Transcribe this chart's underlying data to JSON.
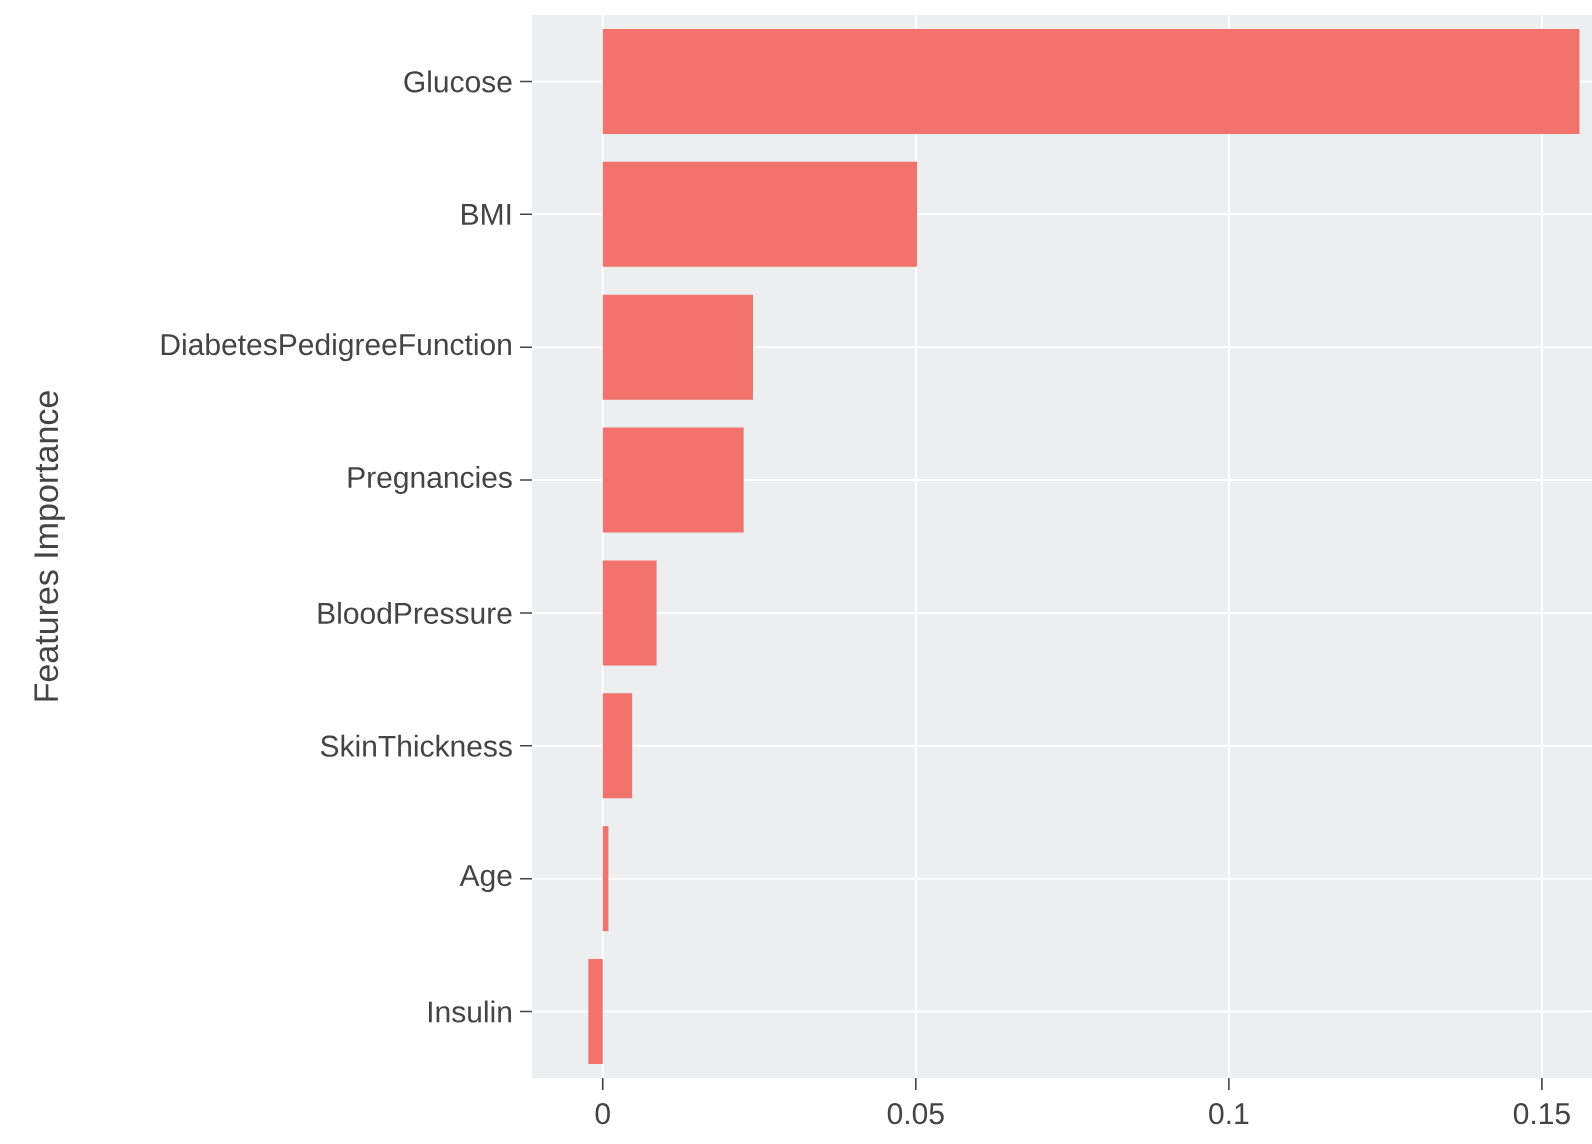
{
  "chart_data": {
    "type": "bar",
    "orientation": "horizontal",
    "ylabel": "Features Importance",
    "categories": [
      "Glucose",
      "BMI",
      "DiabetesPedigreeFunction",
      "Pregnancies",
      "BloodPressure",
      "SkinThickness",
      "Age",
      "Insulin"
    ],
    "values": [
      0.156,
      0.0502,
      0.024,
      0.0225,
      0.0086,
      0.0047,
      0.0009,
      -0.0023
    ],
    "color": "#f2726c",
    "xlim": [
      -0.0113,
      0.158
    ],
    "xticks": [
      0,
      0.05,
      0.1,
      0.15
    ],
    "grid": true
  }
}
